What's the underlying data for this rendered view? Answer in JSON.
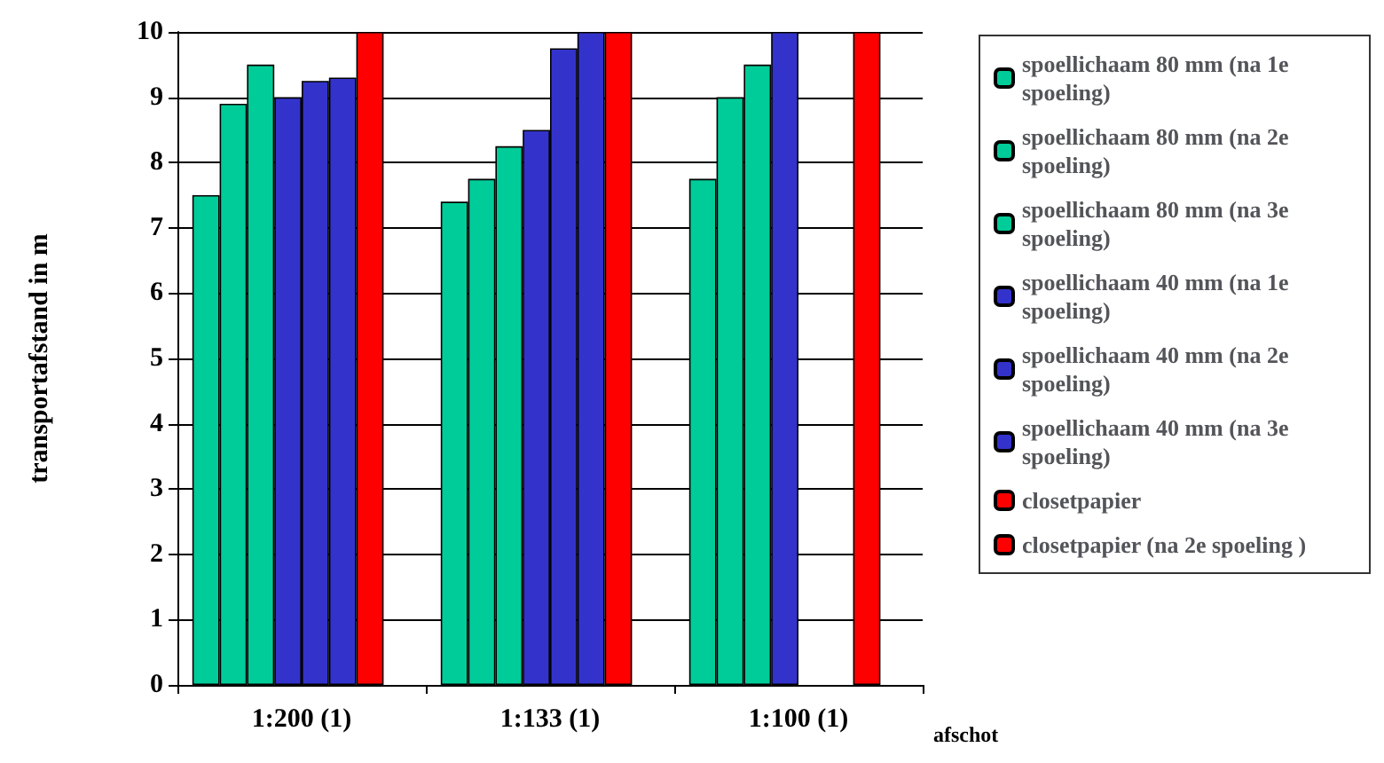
{
  "chart_data": {
    "type": "bar",
    "xlabel": "afschot",
    "ylabel": "transportafstand in m",
    "categories": [
      "1:200 (1)",
      "1:133 (1)",
      "1:100 (1)"
    ],
    "series": [
      {
        "name": "spoellichaam 80 mm (na 1e spoeling)",
        "color": "#00cc99",
        "values": [
          7.5,
          7.4,
          7.75
        ]
      },
      {
        "name": "spoellichaam 80 mm (na 2e spoeling)",
        "color": "#00cc99",
        "values": [
          8.9,
          7.75,
          9.0
        ]
      },
      {
        "name": "spoellichaam 80 mm (na 3e spoeling)",
        "color": "#00cc99",
        "values": [
          9.5,
          8.25,
          9.5
        ]
      },
      {
        "name": "spoellichaam 40 mm (na 1e spoeling)",
        "color": "#3333cc",
        "values": [
          9.0,
          8.5,
          10
        ]
      },
      {
        "name": "spoellichaam 40 mm (na 2e spoeling)",
        "color": "#3333cc",
        "values": [
          9.25,
          9.75,
          null
        ]
      },
      {
        "name": "spoellichaam 40 mm (na 3e spoeling)",
        "color": "#3333cc",
        "values": [
          9.3,
          10,
          null
        ]
      },
      {
        "name": "closetpapier",
        "color": "#ff0000",
        "values": [
          10,
          10,
          10
        ]
      },
      {
        "name": "closetpapier (na 2e spoeling )",
        "color": "#ff0000",
        "values": [
          null,
          null,
          null
        ]
      }
    ],
    "ylim": [
      0,
      10
    ],
    "yticks": [
      0,
      1,
      2,
      3,
      4,
      5,
      6,
      7,
      8,
      9,
      10
    ],
    "grid": "y",
    "legend": "right"
  }
}
